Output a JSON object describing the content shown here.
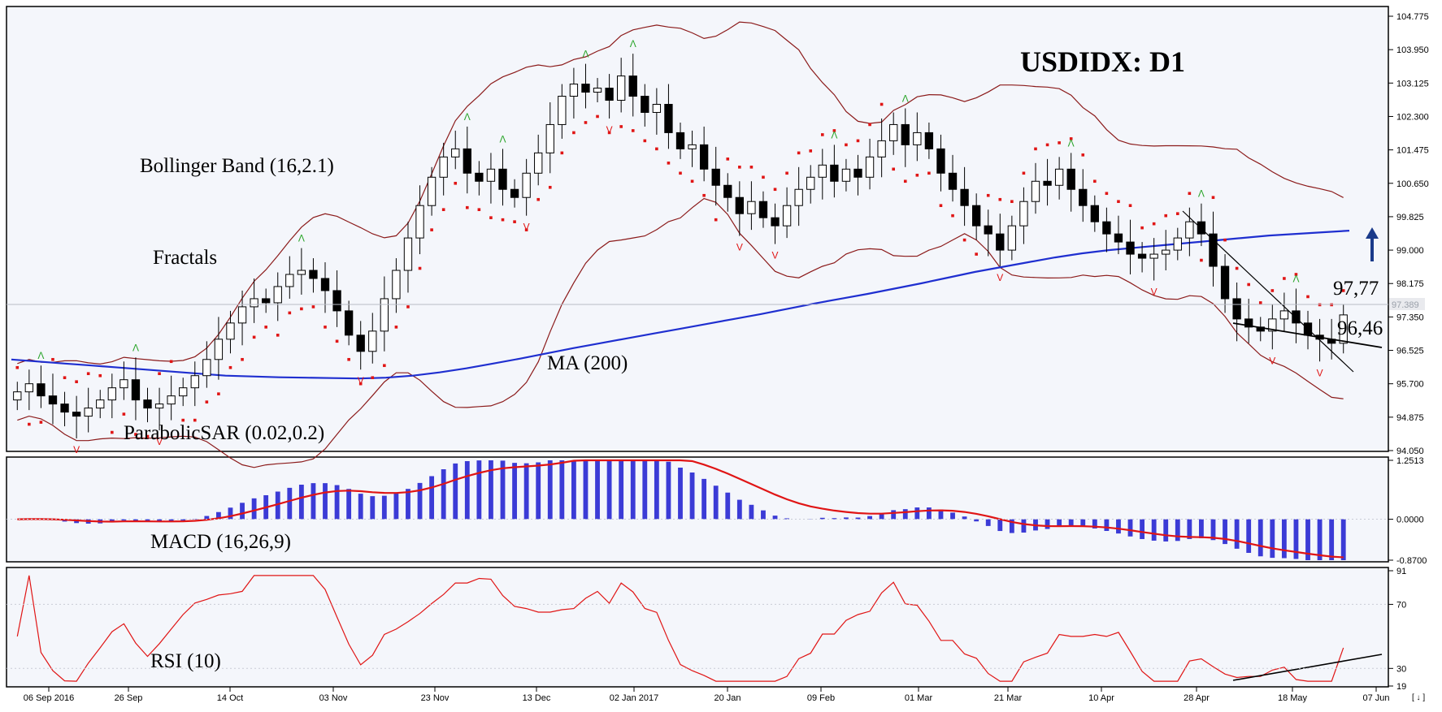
{
  "chart_data": {
    "type": "candlestick",
    "title": "USDIDX: D1",
    "colors": {
      "background": "#f4f6fb",
      "bollinger": "#8b1a1a",
      "ma200": "#1f2fd0",
      "sar": "#e01515",
      "fractal_up": "#2aa52a",
      "fractal_down": "#e01515",
      "macd_hist": "#3b3bd6",
      "macd_signal": "#e01515",
      "rsi": "#e01515",
      "trendline": "#000000",
      "arrow": "#1a3a8a"
    },
    "main": {
      "y_ticks": [
        "104.775",
        "103.950",
        "103.125",
        "102.300",
        "101.475",
        "100.650",
        "99.825",
        "99.000",
        "98.175",
        "97.350",
        "96.525",
        "95.700",
        "94.875",
        "94.050"
      ],
      "ylim": [
        94.05,
        104.775
      ],
      "current_price": "97.389",
      "close_series": [
        95.5,
        95.7,
        95.4,
        95.2,
        95.0,
        94.9,
        95.1,
        95.3,
        95.6,
        95.8,
        95.3,
        95.1,
        95.2,
        95.4,
        95.6,
        95.9,
        96.3,
        96.8,
        97.2,
        97.6,
        97.8,
        97.7,
        98.1,
        98.4,
        98.5,
        98.3,
        98.0,
        97.5,
        96.9,
        96.5,
        97.0,
        97.8,
        98.5,
        99.3,
        100.1,
        100.8,
        101.3,
        101.5,
        100.9,
        100.7,
        101.0,
        100.5,
        100.3,
        100.9,
        101.4,
        102.1,
        102.8,
        103.1,
        102.9,
        103.0,
        102.7,
        103.3,
        102.8,
        102.4,
        102.6,
        101.9,
        101.5,
        101.6,
        101.0,
        100.6,
        100.3,
        99.9,
        100.2,
        99.8,
        99.6,
        100.1,
        100.5,
        100.8,
        101.1,
        100.7,
        101.0,
        100.8,
        101.3,
        101.7,
        102.1,
        101.6,
        101.9,
        101.5,
        100.9,
        100.5,
        100.1,
        99.6,
        99.4,
        99.0,
        99.6,
        100.2,
        100.7,
        100.6,
        101.0,
        100.5,
        100.1,
        99.7,
        99.4,
        99.2,
        98.9,
        98.8,
        98.9,
        99.0,
        99.3,
        99.7,
        99.4,
        98.6,
        97.8,
        97.3,
        97.1,
        97.0,
        97.3,
        97.5,
        97.2,
        96.9,
        96.8,
        96.7,
        97.4
      ],
      "ma200_series": [
        96.3,
        96.25,
        96.2,
        96.15,
        96.1,
        96.05,
        96.0,
        95.95,
        95.9,
        95.88,
        95.86,
        95.85,
        95.84,
        95.83,
        95.85,
        95.9,
        95.98,
        96.08,
        96.2,
        96.32,
        96.45,
        96.58,
        96.7,
        96.82,
        96.94,
        97.06,
        97.18,
        97.3,
        97.42,
        97.55,
        97.68,
        97.8,
        97.92,
        98.05,
        98.18,
        98.32,
        98.46,
        98.58,
        98.7,
        98.82,
        98.92,
        99.0,
        99.06,
        99.12,
        99.18,
        99.24,
        99.3,
        99.36,
        99.4,
        99.44,
        99.48
      ],
      "trend_line_value": "97,77",
      "support_line_value": "96,46"
    },
    "x_labels": [
      "06 Sep 2016",
      "26 Sep",
      "14 Oct",
      "03 Nov",
      "23 Nov",
      "13 Dec",
      "02 Jan 2017",
      "20 Jan",
      "09 Feb",
      "01 Mar",
      "21 Mar",
      "10 Apr",
      "28 Apr",
      "18 May",
      "07 Jun"
    ],
    "annotations": {
      "bollinger": "Bollinger Band (16,2.1)",
      "fractals": "Fractals",
      "ma": "MA (200)",
      "sar": "ParabolicSAR (0.02,0.2)",
      "macd": "MACD (16,26,9)",
      "rsi": "RSI (10)"
    },
    "macd": {
      "y_ticks": [
        "1.2513",
        "0.0000",
        "-0.8700"
      ],
      "ylim": [
        -0.87,
        1.2513
      ]
    },
    "rsi": {
      "y_ticks": [
        "91",
        "70",
        "30",
        "19"
      ],
      "ylim": [
        19,
        91
      ]
    },
    "corner_label": "[ ↓ ]"
  }
}
